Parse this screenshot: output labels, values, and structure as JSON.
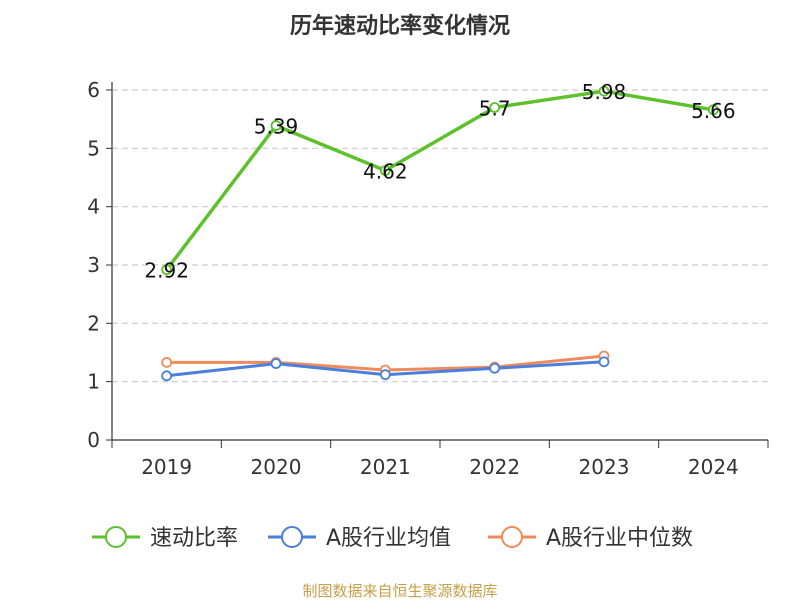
{
  "chart_data": {
    "type": "line",
    "title": "历年速动比率变化情况",
    "categories": [
      "2019",
      "2020",
      "2021",
      "2022",
      "2023",
      "2024"
    ],
    "ylim": [
      0,
      6
    ],
    "yticks": [
      0,
      1,
      2,
      3,
      4,
      5,
      6
    ],
    "grid": true,
    "legend_position": "bottom",
    "series": [
      {
        "name": "速动比率",
        "color": "#5cc12a",
        "values": [
          2.92,
          5.39,
          4.62,
          5.7,
          5.98,
          5.66
        ],
        "labels": [
          "2.92",
          "5.39",
          "4.62",
          "5.7",
          "5.98",
          "5.66"
        ],
        "show_labels": true
      },
      {
        "name": "A股行业均值",
        "color": "#4a7fdb",
        "values": [
          1.1,
          1.31,
          1.12,
          1.23,
          1.34,
          null
        ],
        "show_labels": false
      },
      {
        "name": "A股行业中位数",
        "color": "#f08a5d",
        "values": [
          1.33,
          1.33,
          1.2,
          1.25,
          1.44,
          null
        ],
        "show_labels": false
      }
    ],
    "source": "制图数据来自恒生聚源数据库"
  }
}
